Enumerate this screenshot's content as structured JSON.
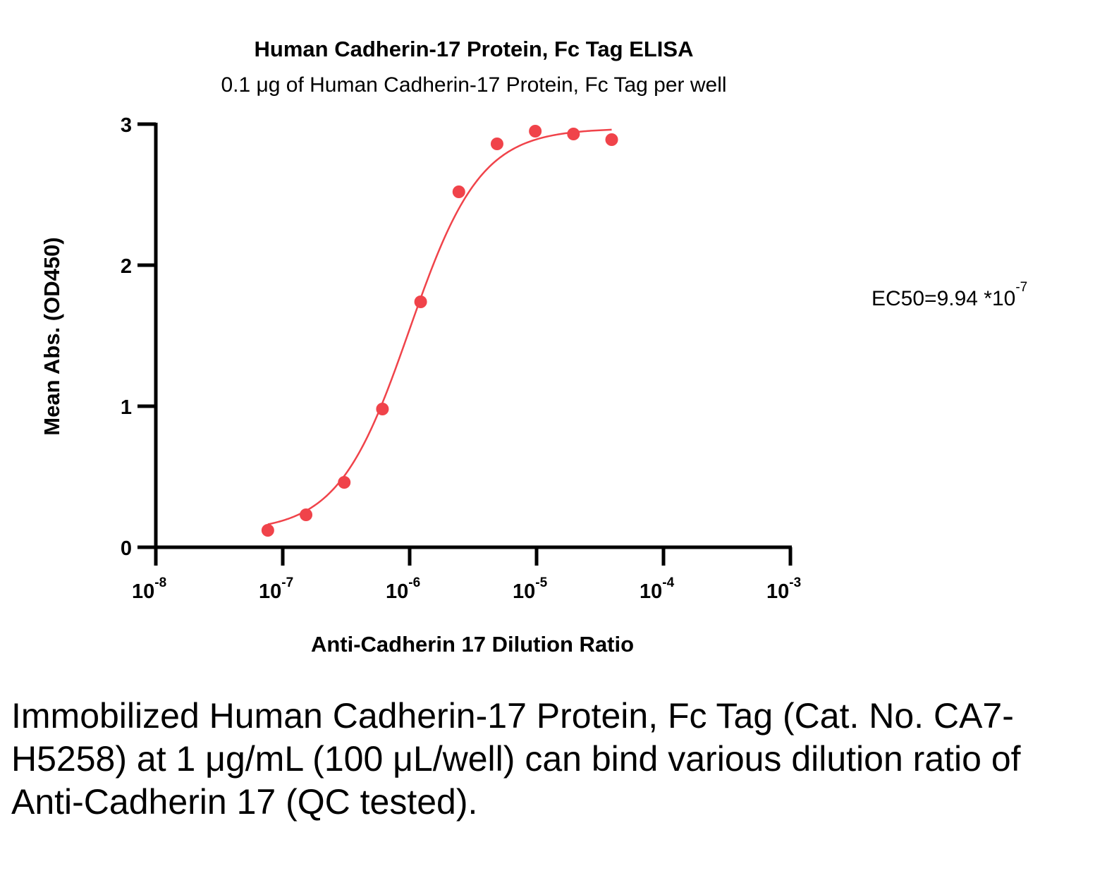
{
  "chart_data": {
    "type": "scatter",
    "title": "Human Cadherin-17 Protein, Fc Tag ELISA",
    "subtitle": "0.1 μg of Human Cadherin-17 Protein, Fc Tag per well",
    "xlabel": "Anti-Cadherin 17 Dilution Ratio",
    "ylabel": "Mean Abs. (OD450)",
    "xscale": "log",
    "xlim": [
      1e-08,
      0.001
    ],
    "ylim": [
      0,
      3
    ],
    "x_ticks": [
      {
        "base": "10",
        "exp": "-8",
        "value": 1e-08
      },
      {
        "base": "10",
        "exp": "-7",
        "value": 1e-07
      },
      {
        "base": "10",
        "exp": "-6",
        "value": 1e-06
      },
      {
        "base": "10",
        "exp": "-5",
        "value": 1e-05
      },
      {
        "base": "10",
        "exp": "-4",
        "value": 0.0001
      },
      {
        "base": "10",
        "exp": "-3",
        "value": 0.001
      }
    ],
    "y_ticks": [
      "0",
      "1",
      "2",
      "3"
    ],
    "series": [
      {
        "color": "#f0434a",
        "x": [
          7.63e-08,
          1.526e-07,
          3.052e-07,
          6.104e-07,
          1.2207e-06,
          2.4414e-06,
          4.8828e-06,
          9.7656e-06,
          1.95313e-05,
          3.90625e-05
        ],
        "y": [
          0.12,
          0.23,
          0.46,
          0.98,
          1.74,
          2.52,
          2.86,
          2.95,
          2.93,
          2.89
        ]
      }
    ],
    "fit_curve": {
      "type": "4PL",
      "bottom": 0.11,
      "top": 2.97,
      "ec50": 9.94e-07,
      "hill": 1.55
    },
    "annotation": {
      "text": "EC50=9.94 *10",
      "exp": "-7"
    },
    "grid": false
  },
  "caption": "Immobilized Human Cadherin-17 Protein, Fc Tag (Cat. No. CA7-H5258) at 1 μg/mL (100 μL/well) can bind various dilution ratio of Anti-Cadherin 17 (QC tested)."
}
